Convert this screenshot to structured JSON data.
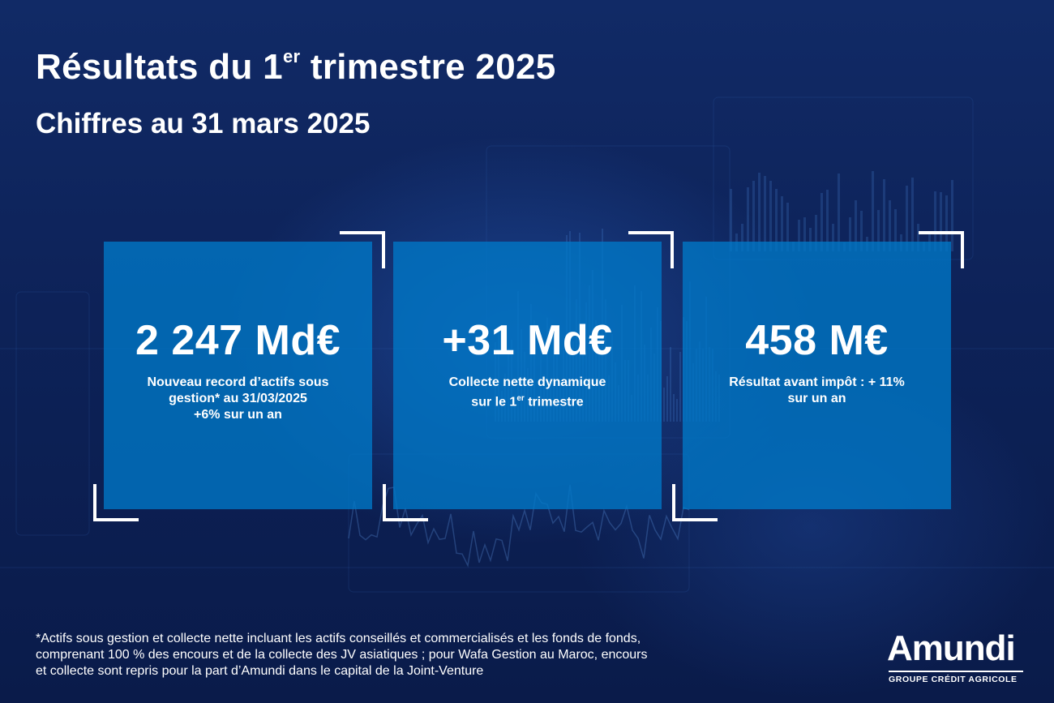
{
  "header": {
    "title_prefix": "Résultats du 1",
    "title_sup": "er",
    "title_suffix": " trimestre 2025",
    "subtitle": "Chiffres au 31 mars 2025"
  },
  "cards": [
    {
      "value": "2 247 Md€",
      "desc_lines": [
        "Nouveau record d’actifs sous",
        "gestion* au 31/03/2025",
        "+6% sur un an"
      ]
    },
    {
      "value": "+31 Md€",
      "desc_line1": "Collecte nette dynamique",
      "desc_line2_prefix": "sur le 1",
      "desc_line2_sup": "er",
      "desc_line2_suffix": " trimestre"
    },
    {
      "value": "458 M€",
      "desc_lines": [
        "Résultat avant impôt : + 11%",
        "sur un an"
      ]
    }
  ],
  "footnote": {
    "lines": [
      "*Actifs sous gestion et collecte nette incluant les actifs conseillés et commercialisés et les fonds de fonds,",
      "comprenant 100 % des encours et de la collecte des JV asiatiques ; pour Wafa Gestion au Maroc, encours",
      "et collecte sont repris pour la part d’Amundi dans le capital de la Joint-Venture"
    ]
  },
  "logo": {
    "wordmark": "Amundi",
    "tagline": "GROUPE CRÉDIT AGRICOLE"
  },
  "colors": {
    "background": "#0c1f54",
    "card": "#0078c8",
    "text": "#ffffff"
  }
}
